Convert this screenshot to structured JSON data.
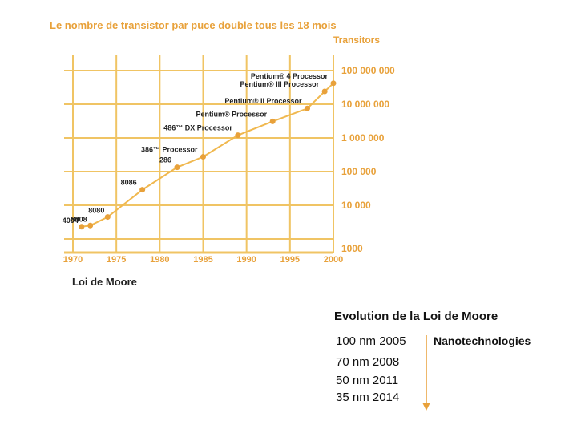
{
  "title": "Le nombre de transistor par puce double tous les 18 mois",
  "caption": "Loi de Moore",
  "evolution": {
    "title": "Evolution de la Loi de Moore",
    "items": [
      "100 nm 2005",
      "70 nm 2008",
      "50 nm 2011",
      "35 nm 2014"
    ],
    "label": "Nanotechnologies"
  },
  "colors": {
    "accent": "#e8a13a",
    "grid": "#f0c464",
    "line": "#f0b84f"
  },
  "chart_data": {
    "type": "line",
    "ylabel": "Transitors",
    "yscale": "log",
    "xlim": [
      1970,
      2000
    ],
    "ylim": [
      1000,
      100000000
    ],
    "x_ticks": [
      "1970",
      "1975",
      "1980",
      "1985",
      "1990",
      "1995",
      "2000"
    ],
    "y_ticks": [
      {
        "value": 1000,
        "label": "1000"
      },
      {
        "value": 10000,
        "label": "10 000"
      },
      {
        "value": 100000,
        "label": "100 000"
      },
      {
        "value": 1000000,
        "label": "1 000 000"
      },
      {
        "value": 10000000,
        "label": "10 000 000"
      },
      {
        "value": 100000000,
        "label": "100 000 000"
      }
    ],
    "grid": true,
    "points": [
      {
        "year": 1971,
        "transistors": 2300,
        "label": "4004"
      },
      {
        "year": 1972,
        "transistors": 2500,
        "label": "8008"
      },
      {
        "year": 1974,
        "transistors": 4500,
        "label": "8080"
      },
      {
        "year": 1978,
        "transistors": 29000,
        "label": "8086"
      },
      {
        "year": 1982,
        "transistors": 134000,
        "label": "286"
      },
      {
        "year": 1985,
        "transistors": 275000,
        "label": "386™ Processor"
      },
      {
        "year": 1989,
        "transistors": 1200000,
        "label": "486™ DX Processor"
      },
      {
        "year": 1993,
        "transistors": 3100000,
        "label": "Pentium® Processor"
      },
      {
        "year": 1997,
        "transistors": 7500000,
        "label": "Pentium® II Processor"
      },
      {
        "year": 1999,
        "transistors": 24000000,
        "label": "Pentium® III Processor"
      },
      {
        "year": 2000,
        "transistors": 42000000,
        "label": "Pentium® 4 Processor"
      }
    ]
  }
}
